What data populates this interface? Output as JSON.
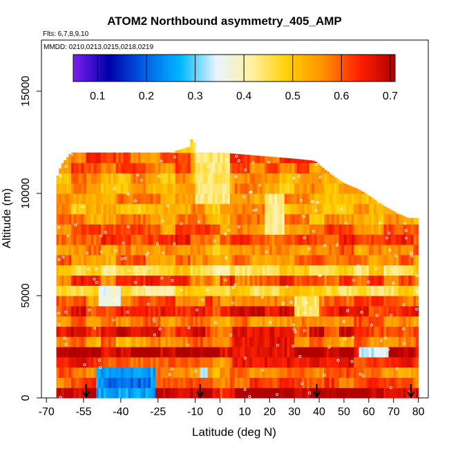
{
  "chart_data": {
    "type": "heatmap",
    "title": "ATOM2 Northbound asymmetry_405_AMP",
    "subtitle_flights": "Flts: 6,7,8,9,10",
    "subtitle_dates": "MMDD: 0210,0213,0215,0218,0219",
    "xlabel": "Latitude (deg N)",
    "ylabel": "Altitude (m)",
    "xlim": [
      -72,
      84
    ],
    "ylim": [
      0,
      17500
    ],
    "x_ticks": [
      -70,
      -55,
      -40,
      -25,
      -10,
      0,
      10,
      20,
      30,
      40,
      50,
      60,
      70,
      80
    ],
    "x_tick_labels": [
      "-70",
      "-55",
      "-40",
      "-25",
      "-10",
      "0",
      "10",
      "20",
      "30",
      "40",
      "50",
      "60",
      "70",
      "80"
    ],
    "y_ticks": [
      0,
      5000,
      10000,
      15000
    ],
    "y_tick_labels": [
      "0",
      "5000",
      "10000",
      "15000"
    ],
    "colorbar": {
      "range": [
        0.05,
        0.71
      ],
      "ticks": [
        0.1,
        0.2,
        0.3,
        0.4,
        0.5,
        0.6,
        0.7
      ],
      "tick_labels": [
        "0.1",
        "0.2",
        "0.3",
        "0.4",
        "0.5",
        "0.6",
        "0.7"
      ],
      "colors": [
        "#7a1ff0",
        "#0000a8",
        "#0060e8",
        "#00b8ff",
        "#e8f4ff",
        "#fff0a0",
        "#ffd000",
        "#ff9000",
        "#ff2000",
        "#b00000"
      ]
    },
    "profile_arrows_lat": [
      -54,
      -8,
      39,
      77
    ],
    "envelope": [
      {
        "lat": -66,
        "top": 10700
      },
      {
        "lat": -64,
        "top": 11400
      },
      {
        "lat": -60,
        "top": 12000
      },
      {
        "lat": -50,
        "top": 12000
      },
      {
        "lat": -40,
        "top": 12000
      },
      {
        "lat": -30,
        "top": 12000
      },
      {
        "lat": -20,
        "top": 12000
      },
      {
        "lat": -12,
        "top": 12300
      },
      {
        "lat": -11,
        "top": 13000
      },
      {
        "lat": -10,
        "top": 12000
      },
      {
        "lat": 0,
        "top": 12000
      },
      {
        "lat": 10,
        "top": 11900
      },
      {
        "lat": 20,
        "top": 11800
      },
      {
        "lat": 30,
        "top": 11700
      },
      {
        "lat": 38,
        "top": 11600
      },
      {
        "lat": 44,
        "top": 11000
      },
      {
        "lat": 50,
        "top": 10500
      },
      {
        "lat": 56,
        "top": 10200
      },
      {
        "lat": 60,
        "top": 9900
      },
      {
        "lat": 66,
        "top": 9400
      },
      {
        "lat": 72,
        "top": 9000
      },
      {
        "lat": 76,
        "top": 8800
      },
      {
        "lat": 80,
        "top": 8800
      }
    ],
    "lat_range": [
      -66,
      80
    ],
    "alt_bin_m": 500,
    "lat_bin_deg": 1,
    "value_profile_by_altitude": [
      {
        "alt": 0,
        "value": 0.62
      },
      {
        "alt": 500,
        "value": 0.6
      },
      {
        "alt": 1000,
        "value": 0.58
      },
      {
        "alt": 1500,
        "value": 0.59
      },
      {
        "alt": 2000,
        "value": 0.62
      },
      {
        "alt": 2500,
        "value": 0.6
      },
      {
        "alt": 3000,
        "value": 0.58
      },
      {
        "alt": 3500,
        "value": 0.55
      },
      {
        "alt": 4000,
        "value": 0.56
      },
      {
        "alt": 4500,
        "value": 0.55
      },
      {
        "alt": 5000,
        "value": 0.54
      },
      {
        "alt": 5500,
        "value": 0.53
      },
      {
        "alt": 6000,
        "value": 0.55
      },
      {
        "alt": 6500,
        "value": 0.54
      },
      {
        "alt": 7000,
        "value": 0.57
      },
      {
        "alt": 7500,
        "value": 0.53
      },
      {
        "alt": 8000,
        "value": 0.52
      },
      {
        "alt": 8500,
        "value": 0.55
      },
      {
        "alt": 9000,
        "value": 0.5
      },
      {
        "alt": 9500,
        "value": 0.53
      },
      {
        "alt": 10000,
        "value": 0.52
      },
      {
        "alt": 10500,
        "value": 0.49
      },
      {
        "alt": 11000,
        "value": 0.52
      },
      {
        "alt": 11500,
        "value": 0.54
      },
      {
        "alt": 12000,
        "value": 0.5
      },
      {
        "alt": 12500,
        "value": 0.5
      }
    ],
    "anomalies": [
      {
        "lat_min": -50,
        "lat_max": -26,
        "alt_min": 0,
        "alt_max": 1100,
        "value": 0.25
      },
      {
        "lat_min": -46,
        "lat_max": -28,
        "alt_min": 500,
        "alt_max": 900,
        "value": 0.2
      },
      {
        "lat_min": -49,
        "lat_max": -40,
        "alt_min": 4200,
        "alt_max": 5200,
        "value": 0.36
      },
      {
        "lat_min": 56,
        "lat_max": 68,
        "alt_min": 1800,
        "alt_max": 2500,
        "value": 0.34
      },
      {
        "lat_min": 5,
        "lat_max": 30,
        "alt_min": 1500,
        "alt_max": 3500,
        "value": 0.66
      },
      {
        "lat_min": -8,
        "lat_max": -5,
        "alt_min": 900,
        "alt_max": 1300,
        "value": 0.35
      },
      {
        "lat_min": 18,
        "lat_max": 26,
        "alt_min": 8000,
        "alt_max": 10000,
        "value": 0.42
      },
      {
        "lat_min": -10,
        "lat_max": 4,
        "alt_min": 9500,
        "alt_max": 12000,
        "value": 0.44
      },
      {
        "lat_min": 30,
        "lat_max": 40,
        "alt_min": 3800,
        "alt_max": 4600,
        "value": 0.44
      }
    ]
  }
}
